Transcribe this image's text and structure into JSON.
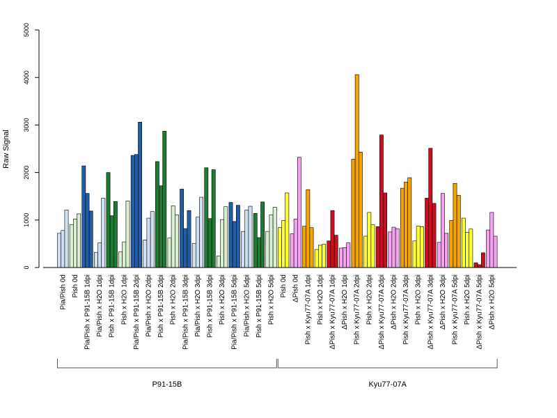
{
  "chart_data": {
    "type": "bar",
    "ylabel": "Raw Signal",
    "ylim": [
      0,
      5000
    ],
    "yticks": [
      0,
      1000,
      2000,
      3000,
      4000,
      5000
    ],
    "grid": false,
    "legend": "none",
    "categories": [
      "Pia/Pish 0d",
      "Pish 0d",
      "Pia/Pish x P91-15B 1dpi",
      "Pia/Pish x H2O 1dpi",
      "Pish x P91-15B 1dpi",
      "Pish x H2O 1dpi",
      "Pia/Pish x P91-15B 2dpi",
      "Pia/Pish x H2O 2dpi",
      "Pish x P91-15B 2dpi",
      "Pish x H2O 2dpi",
      "Pia/Pish x P91-15B 3dpi",
      "Pia/Pish x H2O 3dpi",
      "Pish x P91-15B 3dpi",
      "Pish x H2O 3dpi",
      "Pia/Pish x P91-15B 5dpi",
      "Pia/Pish x H2O 5dpi",
      "Pish x P91-15B 5dpi",
      "Pish x H2O 5dpi",
      "Pish 0d",
      "ΔPish 0d",
      "Pish x Kyu77-07A 1dpi",
      "Pish x H2O 1dpi",
      "ΔPish x Kyu77-07A 1dpi",
      "ΔPish x H2O 1dpi",
      "Pish x Kyu77-07A 2dpi",
      "Pish x H2O 2dpi",
      "ΔPish x Kyu77-07A 2dpi",
      "ΔPish x H2O 2dpi",
      "Pish x Kyu77-07A 3dpi",
      "Pish x H2O 3dpi",
      "ΔPish x Kyu77-07A 3dpi",
      "ΔPish x H2O 3dpi",
      "Pish x Kyu77-07A 5dpi",
      "Pish x H2O 5dpi",
      "ΔPish x Kyu77-07A 5dpi",
      "ΔPish x H2O 5dpi"
    ],
    "colors": [
      "#cfe0f3",
      "#d8efd2",
      "#225ea8",
      "#cfe0f3",
      "#1e7a33",
      "#d8efd2",
      "#225ea8",
      "#cfe0f3",
      "#1e7a33",
      "#d8efd2",
      "#225ea8",
      "#cfe0f3",
      "#1e7a33",
      "#d8efd2",
      "#225ea8",
      "#cfe0f3",
      "#1e7a33",
      "#d8efd2",
      "#ffff33",
      "#f5a3f0",
      "#f5a300",
      "#ffff33",
      "#cc0f1e",
      "#f5a3f0",
      "#f5a300",
      "#ffff33",
      "#cc0f1e",
      "#f5a3f0",
      "#f5a300",
      "#ffff33",
      "#cc0f1e",
      "#f5a3f0",
      "#f5a300",
      "#ffff33",
      "#cc0f1e",
      "#f5a3f0"
    ],
    "values": [
      [
        720,
        780,
        1210
      ],
      [
        900,
        1020,
        1130
      ],
      [
        2140,
        1560,
        1190
      ],
      [
        320,
        520,
        1460
      ],
      [
        2000,
        1090,
        1390
      ],
      [
        330,
        540,
        1400
      ],
      [
        2360,
        2380,
        3060
      ],
      [
        580,
        1040,
        1180
      ],
      [
        2230,
        1720,
        2870
      ],
      [
        620,
        1300,
        1110
      ],
      [
        1650,
        820,
        1200
      ],
      [
        510,
        1060,
        1480
      ],
      [
        2100,
        1030,
        2060
      ],
      [
        240,
        1010,
        1280
      ],
      [
        1370,
        970,
        1310
      ],
      [
        760,
        1210,
        1290
      ],
      [
        1140,
        630,
        1380
      ],
      [
        760,
        1110,
        1270
      ],
      [
        840,
        990,
        1570
      ],
      [
        710,
        1020,
        2320
      ],
      [
        870,
        1640,
        840
      ],
      [
        380,
        470,
        490
      ],
      [
        560,
        1200,
        680
      ],
      [
        410,
        420,
        520
      ],
      [
        2280,
        4060,
        2430
      ],
      [
        660,
        1160,
        900
      ],
      [
        860,
        2790,
        1570
      ],
      [
        750,
        850,
        820
      ],
      [
        1670,
        1800,
        1890
      ],
      [
        560,
        870,
        860
      ],
      [
        1460,
        2510,
        1350
      ],
      [
        530,
        1560,
        720
      ],
      [
        990,
        1770,
        1520
      ],
      [
        1040,
        740,
        810
      ],
      [
        100,
        60,
        310
      ],
      [
        790,
        1160,
        660
      ]
    ],
    "groups": [
      {
        "name": "P91-15B",
        "start": 0,
        "end": 17
      },
      {
        "name": "Kyu77-07A",
        "start": 18,
        "end": 35
      }
    ]
  }
}
